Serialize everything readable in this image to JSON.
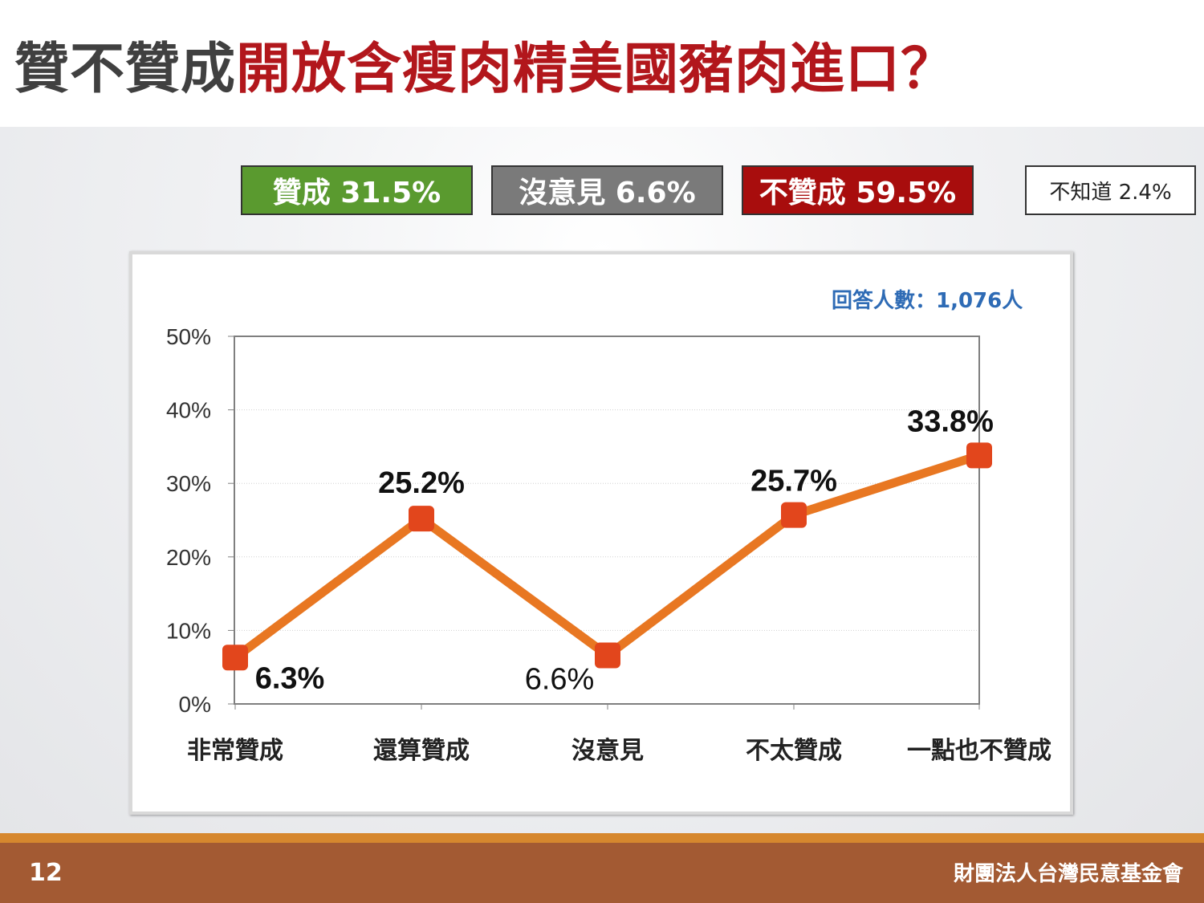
{
  "title": {
    "part1": "贊不贊成",
    "part2": "開放含瘦肉精美國豬肉進口？"
  },
  "summary": {
    "agree": "贊成 31.5%",
    "neutral": "沒意見 6.6%",
    "disagree": "不贊成 59.5%",
    "unknown": "不知道 2.4%"
  },
  "respondents": "回答人數：1,076人",
  "footer": {
    "page_number": "12",
    "organization": "財團法人台灣民意基金會"
  },
  "colors": {
    "agree": "#5a9a2f",
    "neutral": "#7a7a7a",
    "disagree": "#a80d0d",
    "line": "#e87722",
    "marker": "#e2461c",
    "title_red": "#b2171c"
  },
  "chart_data": {
    "type": "line",
    "categories": [
      "非常贊成",
      "還算贊成",
      "沒意見",
      "不太贊成",
      "一點也不贊成"
    ],
    "values": [
      6.3,
      25.2,
      6.6,
      25.7,
      33.8
    ],
    "value_labels": [
      "6.3%",
      "25.2%",
      "6.6%",
      "25.7%",
      "33.8%"
    ],
    "ylim": [
      0,
      50
    ],
    "y_ticks": [
      0,
      10,
      20,
      30,
      40,
      50
    ],
    "y_tick_labels": [
      "0%",
      "10%",
      "20%",
      "30%",
      "40%",
      "50%"
    ],
    "grid": true,
    "legend": "none"
  }
}
